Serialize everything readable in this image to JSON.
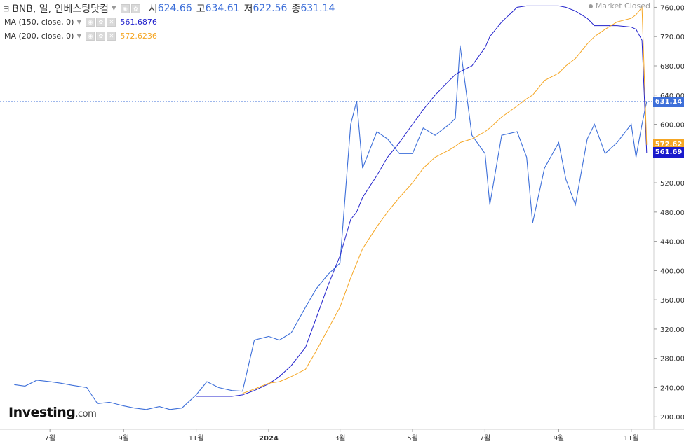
{
  "header": {
    "symbol": "BNB, 일, 인베스팅닷컴",
    "open_label": "시",
    "open": "624.66",
    "high_label": "고",
    "high": "634.61",
    "low_label": "저",
    "low": "622.56",
    "close_label": "종",
    "close": "631.14",
    "status": "Market Closed"
  },
  "indicators": [
    {
      "label": "MA (150, close, 0)",
      "value": "561.6876",
      "color": "#2222cc"
    },
    {
      "label": "MA (200, close, 0)",
      "value": "572.6236",
      "color": "#f5a623"
    }
  ],
  "price_tags": {
    "last": "631.14",
    "last_color": "#3d6fd9",
    "ma200": "572.62",
    "ma200_color": "#f5a623",
    "ma150": "561.69",
    "ma150_color": "#1a1acc"
  },
  "logo": {
    "name": "Investing",
    "domain": ".com"
  },
  "chart_data": {
    "type": "line",
    "y_ticks": [
      "760.00",
      "720.00",
      "680.00",
      "640.00",
      "600.00",
      "560.00",
      "520.00",
      "480.00",
      "440.00",
      "400.00",
      "360.00",
      "320.00",
      "280.00",
      "240.00",
      "200.00"
    ],
    "x_ticks": [
      "7월",
      "9월",
      "11월",
      "2024",
      "3월",
      "5월",
      "7월",
      "9월",
      "11월"
    ],
    "ylim": [
      183,
      770
    ],
    "x": [
      "2023-06-01",
      "2023-06-10",
      "2023-06-20",
      "2023-07-01",
      "2023-07-10",
      "2023-07-20",
      "2023-08-01",
      "2023-08-10",
      "2023-08-20",
      "2023-09-01",
      "2023-09-10",
      "2023-09-20",
      "2023-10-01",
      "2023-10-10",
      "2023-10-20",
      "2023-11-01",
      "2023-11-10",
      "2023-11-20",
      "2023-12-01",
      "2023-12-10",
      "2023-12-20",
      "2024-01-01",
      "2024-01-10",
      "2024-01-20",
      "2024-02-01",
      "2024-02-10",
      "2024-02-20",
      "2024-03-01",
      "2024-03-10",
      "2024-03-15",
      "2024-03-20",
      "2024-04-01",
      "2024-04-10",
      "2024-04-20",
      "2024-05-01",
      "2024-05-10",
      "2024-05-20",
      "2024-06-01",
      "2024-06-06",
      "2024-06-10",
      "2024-06-20",
      "2024-07-01",
      "2024-07-05",
      "2024-07-15",
      "2024-07-28",
      "2024-08-05",
      "2024-08-10",
      "2024-08-20",
      "2024-09-01",
      "2024-09-07",
      "2024-09-15",
      "2024-09-25",
      "2024-10-01",
      "2024-10-10",
      "2024-10-20",
      "2024-11-01",
      "2024-11-05",
      "2024-11-10",
      "2024-11-14"
    ],
    "series": [
      {
        "values": [
          244,
          242,
          250,
          248,
          246,
          243,
          240,
          218,
          220,
          215,
          212,
          210,
          214,
          210,
          212,
          230,
          248,
          240,
          236,
          235,
          305,
          310,
          305,
          315,
          350,
          375,
          395,
          410,
          600,
          632,
          540,
          590,
          580,
          560,
          560,
          595,
          585,
          600,
          608,
          708,
          585,
          560,
          490,
          585,
          590,
          555,
          465,
          540,
          575,
          525,
          490,
          580,
          600,
          560,
          575,
          600,
          555,
          600,
          631
        ]
      },
      {
        "values": [
          null,
          null,
          null,
          null,
          null,
          null,
          null,
          null,
          null,
          null,
          null,
          null,
          null,
          null,
          null,
          228,
          228,
          228,
          228,
          230,
          236,
          245,
          255,
          270,
          295,
          335,
          380,
          420,
          470,
          480,
          500,
          530,
          555,
          575,
          600,
          620,
          640,
          660,
          668,
          672,
          680,
          705,
          720,
          740,
          760,
          762,
          762,
          762,
          762,
          760,
          755,
          745,
          735,
          735,
          735,
          733,
          730,
          715,
          561
        ]
      },
      {
        "values": [
          null,
          null,
          null,
          null,
          null,
          null,
          null,
          null,
          null,
          null,
          null,
          null,
          null,
          null,
          null,
          null,
          null,
          null,
          null,
          232,
          238,
          246,
          248,
          255,
          265,
          290,
          320,
          350,
          390,
          410,
          430,
          460,
          480,
          500,
          520,
          540,
          555,
          565,
          570,
          575,
          580,
          590,
          595,
          610,
          625,
          635,
          640,
          660,
          670,
          680,
          690,
          710,
          720,
          730,
          740,
          745,
          750,
          760,
          572
        ]
      }
    ]
  }
}
